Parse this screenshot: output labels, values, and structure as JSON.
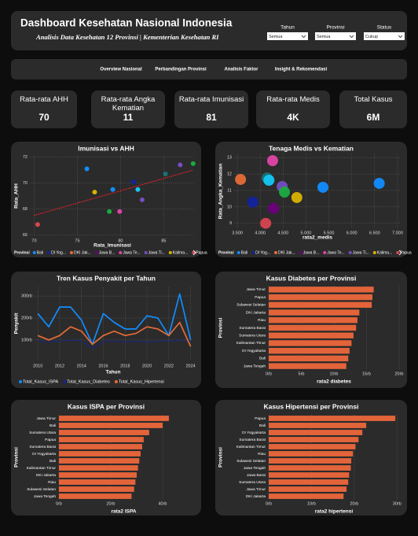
{
  "header": {
    "title": "Dashboard Kesehatan Nasional Indonesia",
    "subtitle": "Analisis Data Kesehatan 12 Provinsi | Kementerian Kesehatan RI",
    "filters": [
      {
        "label": "Tahun",
        "value": "Semua"
      },
      {
        "label": "Provinsi",
        "value": "Semua"
      },
      {
        "label": "Status",
        "value": "Cukup"
      }
    ]
  },
  "nav": [
    "Overview Nasional",
    "Perbandingan Provinsi",
    "Analisis Faktor",
    "Insight & Rekomendasi"
  ],
  "kpis": [
    {
      "label": "Rata-rata AHH",
      "value": "70"
    },
    {
      "label": "Rata-rata Angka Kematian",
      "value": "11"
    },
    {
      "label": "Rata-rata Imunisasi",
      "value": "81"
    },
    {
      "label": "Rata-rata Medis",
      "value": "4K"
    },
    {
      "label": "Total Kasus",
      "value": "6M"
    }
  ],
  "chart_data": [
    {
      "type": "scatter",
      "title": "Imunisasi vs AHH",
      "x_label": "Rata_Imunisasi",
      "y_label": "Rata_AHH",
      "x": [
        70.4,
        76.1,
        77.0,
        79.1,
        78.7,
        79.9,
        81.5,
        82.0,
        82.5,
        85.2,
        86.9,
        88.4
      ],
      "values": [
        66.8,
        71.1,
        69.3,
        69.5,
        67.8,
        67.8,
        70.1,
        69.5,
        68.7,
        70.7,
        71.4,
        71.5
      ],
      "colors": [
        "#d64550",
        "#118dff",
        "#d9b300",
        "#118dff",
        "#1aab40",
        "#e044a7",
        "#12239e",
        "#15c6f4",
        "#744ec2",
        "#197278",
        "#744ec2",
        "#1aab40"
      ],
      "trendline": {
        "x": [
          70,
          88.4
        ],
        "values": [
          67.5,
          71.0
        ],
        "color": "#e8202a"
      },
      "xlim": [
        69.5,
        88.6
      ],
      "ylim": [
        65.9,
        72.1
      ],
      "xticks": [
        70,
        75,
        80,
        85
      ],
      "yticks": [
        66,
        68,
        70,
        72
      ],
      "grid": true,
      "legend_title": "Provinsi",
      "legend": [
        {
          "name": "Bali",
          "color": "#118dff"
        },
        {
          "name": "DI Yog...",
          "color": "#12239e"
        },
        {
          "name": "DKI Jak...",
          "color": "#e66c37"
        },
        {
          "name": "Jawa B...",
          "color": "#6b007b"
        },
        {
          "name": "Jawa Te...",
          "color": "#e044a7"
        },
        {
          "name": "Jawa Ti...",
          "color": "#744ec2"
        },
        {
          "name": "Kalima...",
          "color": "#d9b300"
        },
        {
          "name": "Papua",
          "color": "#d64550"
        }
      ]
    },
    {
      "type": "scatter",
      "title": "Tenaga Medis vs Kematian",
      "x_label": "rata2_medis",
      "y_label": "Rata_Angka_Kematian",
      "x": [
        3570,
        3840,
        4150,
        4190,
        4270,
        4120,
        4290,
        4480,
        4530,
        4800,
        5370,
        6600
      ],
      "values": [
        11.67,
        10.29,
        11.76,
        11.62,
        12.81,
        9.0,
        9.9,
        11.24,
        10.9,
        10.57,
        11.19,
        11.43
      ],
      "colors": [
        "#e66c37",
        "#12239e",
        "#197278",
        "#15c6f4",
        "#e044a7",
        "#d64550",
        "#6b007b",
        "#744ec2",
        "#1aab40",
        "#d9b300",
        "#118dff",
        "#118dff"
      ],
      "xlim": [
        3430,
        7070
      ],
      "ylim": [
        8.7,
        13.2
      ],
      "xticks": [
        {
          "value": 3500,
          "label": "3.500"
        },
        {
          "value": 4000,
          "label": "4.000"
        },
        {
          "value": 4500,
          "label": "4.500"
        },
        {
          "value": 5000,
          "label": "5.000"
        },
        {
          "value": 5500,
          "label": "5.500"
        },
        {
          "value": 6000,
          "label": "6.000"
        },
        {
          "value": 6500,
          "label": "6.500"
        },
        {
          "value": 7000,
          "label": "7.000"
        }
      ],
      "yticks": [
        9,
        10,
        11,
        12,
        13
      ],
      "grid": true,
      "legend_title": "Provinsi",
      "legend": [
        {
          "name": "Bali",
          "color": "#118dff"
        },
        {
          "name": "DI Yog...",
          "color": "#12239e"
        },
        {
          "name": "DKI Jak...",
          "color": "#e66c37"
        },
        {
          "name": "Jawa B...",
          "color": "#6b007b"
        },
        {
          "name": "Jawa Te...",
          "color": "#e044a7"
        },
        {
          "name": "Jawa Ti...",
          "color": "#744ec2"
        },
        {
          "name": "Kalima...",
          "color": "#d9b300"
        },
        {
          "name": "Papua",
          "color": "#d64550"
        }
      ]
    },
    {
      "type": "line",
      "title": "Tren Kasus Penyakit per Tahun",
      "x_label": "Tahun",
      "y_label": "Penyakit",
      "x": [
        2010,
        2011,
        2012,
        2013,
        2014,
        2015,
        2016,
        2017,
        2018,
        2019,
        2020,
        2021,
        2022,
        2023,
        2024
      ],
      "series": [
        {
          "name": "Total_Kasus_ISPA",
          "color": "#118dff",
          "values": [
            220000,
            160000,
            250000,
            250000,
            190000,
            80000,
            220000,
            180000,
            150000,
            150000,
            210000,
            200000,
            120000,
            310000,
            100000
          ]
        },
        {
          "name": "Total_Kasus_Diabetes",
          "color": "#12239e",
          "values": [
            95000,
            90000,
            95000,
            100000,
            95000,
            60000,
            95000,
            95000,
            90000,
            95000,
            90000,
            95000,
            95000,
            100000,
            90000
          ]
        },
        {
          "name": "Total_Kasus_Hipertensi",
          "color": "#e66c37",
          "values": [
            120000,
            100000,
            120000,
            160000,
            140000,
            80000,
            120000,
            140000,
            120000,
            130000,
            160000,
            150000,
            120000,
            180000,
            70000
          ]
        }
      ],
      "xlim": [
        2009.7,
        2024.1
      ],
      "ylim": [
        10000,
        340000
      ],
      "xticks": [
        2010,
        2012,
        2014,
        2016,
        2018,
        2020,
        2022,
        2024
      ],
      "yticks": [
        {
          "value": 100000,
          "label": "100rb"
        },
        {
          "value": 200000,
          "label": "200rb"
        },
        {
          "value": 300000,
          "label": "300rb"
        }
      ],
      "grid": true
    },
    {
      "type": "barh",
      "title": "Kasus Diabetes per Provinsi",
      "x_label": "rata2 diabetes",
      "y_label": "Provinsi",
      "color": "#e3643a",
      "categories": [
        "Jawa Timur",
        "Papua",
        "Sulawesi Selatan",
        "DKI Jakarta",
        "Riau",
        "Sumatera Barat",
        "Sumatera Utara",
        "Kalimantan Timur",
        "DI Yogyakarta",
        "Bali",
        "Jawa Tengah"
      ],
      "values": [
        16100,
        15900,
        15800,
        13900,
        13600,
        13400,
        13000,
        12700,
        12400,
        12200,
        11900
      ],
      "xlim": [
        0,
        20000
      ],
      "xticks": [
        {
          "value": 0,
          "label": "0rb"
        },
        {
          "value": 5000,
          "label": "5rb"
        },
        {
          "value": 10000,
          "label": "10rb"
        },
        {
          "value": 15000,
          "label": "15rb"
        },
        {
          "value": 20000,
          "label": "20rb"
        }
      ],
      "grid": true
    },
    {
      "type": "barh",
      "title": "Kasus ISPA per Provinsi",
      "x_label": "rata2 ISPA",
      "y_label": "Provinsi",
      "color": "#e3643a",
      "categories": [
        "Jawa Timur",
        "Bali",
        "Sumatera Utara",
        "Papua",
        "Sumatera Barat",
        "DI Yogyakarta",
        "Bali",
        "Kalimantan Timur",
        "DKI Jakarta",
        "Riau",
        "Sulawesi Selatan",
        "Jawa Tengah"
      ],
      "values": [
        42400,
        40000,
        34800,
        32700,
        32100,
        31500,
        31000,
        30500,
        30000,
        29500,
        29000,
        28000
      ],
      "xlim": [
        0,
        50000
      ],
      "xticks": [
        {
          "value": 0,
          "label": "0rb"
        },
        {
          "value": 20000,
          "label": "20rb"
        },
        {
          "value": 40000,
          "label": "40rb"
        }
      ],
      "grid": true
    },
    {
      "type": "barh",
      "title": "Kasus Hipertensi per Provinsi",
      "x_label": "rata2 hipertensi",
      "y_label": "Provinsi",
      "color": "#e3643a",
      "categories": [
        "Papua",
        "Bali",
        "DI Yogyakarta",
        "Sumatera Barat",
        "Kalimantan Timur",
        "Riau",
        "Sulawesi Selatan",
        "Jawa Tengah",
        "Jawa Barat",
        "Sumatera Utara",
        "Jawa Timur",
        "DKI Jakarta"
      ],
      "values": [
        29600,
        22800,
        21900,
        21000,
        20300,
        19700,
        19300,
        19200,
        18800,
        18600,
        18200,
        17500
      ],
      "xlim": [
        0,
        30500
      ],
      "xticks": [
        {
          "value": 0,
          "label": "0rb"
        },
        {
          "value": 10000,
          "label": "10rb"
        },
        {
          "value": 20000,
          "label": "20rb"
        },
        {
          "value": 30000,
          "label": "30rb"
        }
      ],
      "grid": true
    }
  ]
}
